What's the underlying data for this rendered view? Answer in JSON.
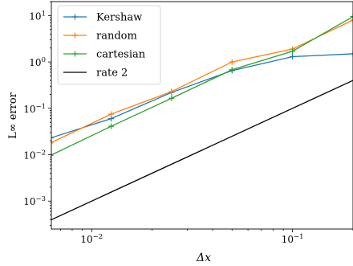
{
  "chart_data": {
    "type": "line",
    "title": "",
    "xlabel": "Δx",
    "ylabel": "L∞ error",
    "xscale": "log",
    "yscale": "log",
    "xlim": [
      0.0063,
      0.2
    ],
    "ylim": [
      0.00025,
      20
    ],
    "x_ticks": [
      {
        "value": 0.01,
        "base": "10",
        "exp": "−2"
      },
      {
        "value": 0.1,
        "base": "10",
        "exp": "−1"
      }
    ],
    "y_ticks": [
      {
        "value": 0.001,
        "base": "10",
        "exp": "−3"
      },
      {
        "value": 0.01,
        "base": "10",
        "exp": "−2"
      },
      {
        "value": 0.1,
        "base": "10",
        "exp": "−1"
      },
      {
        "value": 1,
        "base": "10",
        "exp": "0"
      },
      {
        "value": 10,
        "base": "10",
        "exp": "1"
      }
    ],
    "grid": false,
    "legend_position": "top-left",
    "series": [
      {
        "name": "Kershaw",
        "color": "#1f77b4",
        "marker": "+",
        "x": [
          0.00625,
          0.0125,
          0.025,
          0.05,
          0.1,
          0.2
        ],
        "y": [
          0.023,
          0.06,
          0.22,
          0.65,
          1.3,
          1.5
        ]
      },
      {
        "name": "random",
        "color": "#ff7f0e",
        "marker": "+",
        "x": [
          0.00625,
          0.0125,
          0.025,
          0.05,
          0.1,
          0.2
        ],
        "y": [
          0.018,
          0.075,
          0.23,
          1.0,
          1.9,
          8.0
        ]
      },
      {
        "name": "cartesian",
        "color": "#2ca02c",
        "marker": "+",
        "x": [
          0.00625,
          0.0125,
          0.025,
          0.05,
          0.1,
          0.2
        ],
        "y": [
          0.0097,
          0.041,
          0.165,
          0.68,
          1.7,
          9.5
        ]
      },
      {
        "name": "rate 2",
        "color": "#000000",
        "marker": "none",
        "x": [
          0.00625,
          0.2
        ],
        "y": [
          0.00039,
          0.4
        ]
      }
    ]
  }
}
